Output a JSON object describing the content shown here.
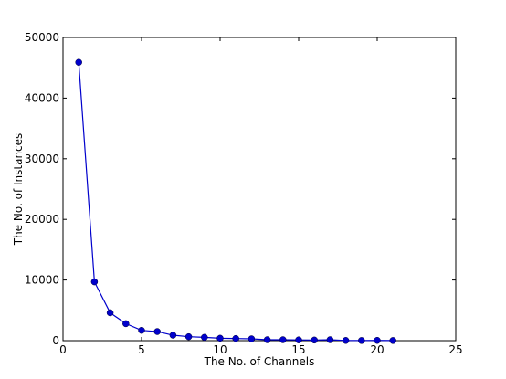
{
  "chart_data": {
    "type": "line",
    "title": "",
    "xlabel": "The No. of Channels",
    "ylabel": "The No. of Instances",
    "xlim": [
      0,
      25
    ],
    "ylim": [
      0,
      50000
    ],
    "xticks": [
      "0",
      "5",
      "10",
      "15",
      "20",
      "25"
    ],
    "yticks": [
      "0",
      "10000",
      "20000",
      "30000",
      "40000",
      "50000"
    ],
    "grid": false,
    "series": [
      {
        "color": "#0000cc",
        "marker": "circle",
        "x": [
          1,
          2,
          3,
          4,
          5,
          6,
          7,
          8,
          9,
          10,
          11,
          12,
          13,
          14,
          15,
          16,
          17,
          18,
          19,
          20,
          21
        ],
        "y": [
          45900,
          9700,
          4600,
          2800,
          1700,
          1500,
          900,
          650,
          550,
          400,
          350,
          300,
          150,
          150,
          120,
          100,
          150,
          30,
          20,
          40,
          20
        ]
      }
    ]
  }
}
